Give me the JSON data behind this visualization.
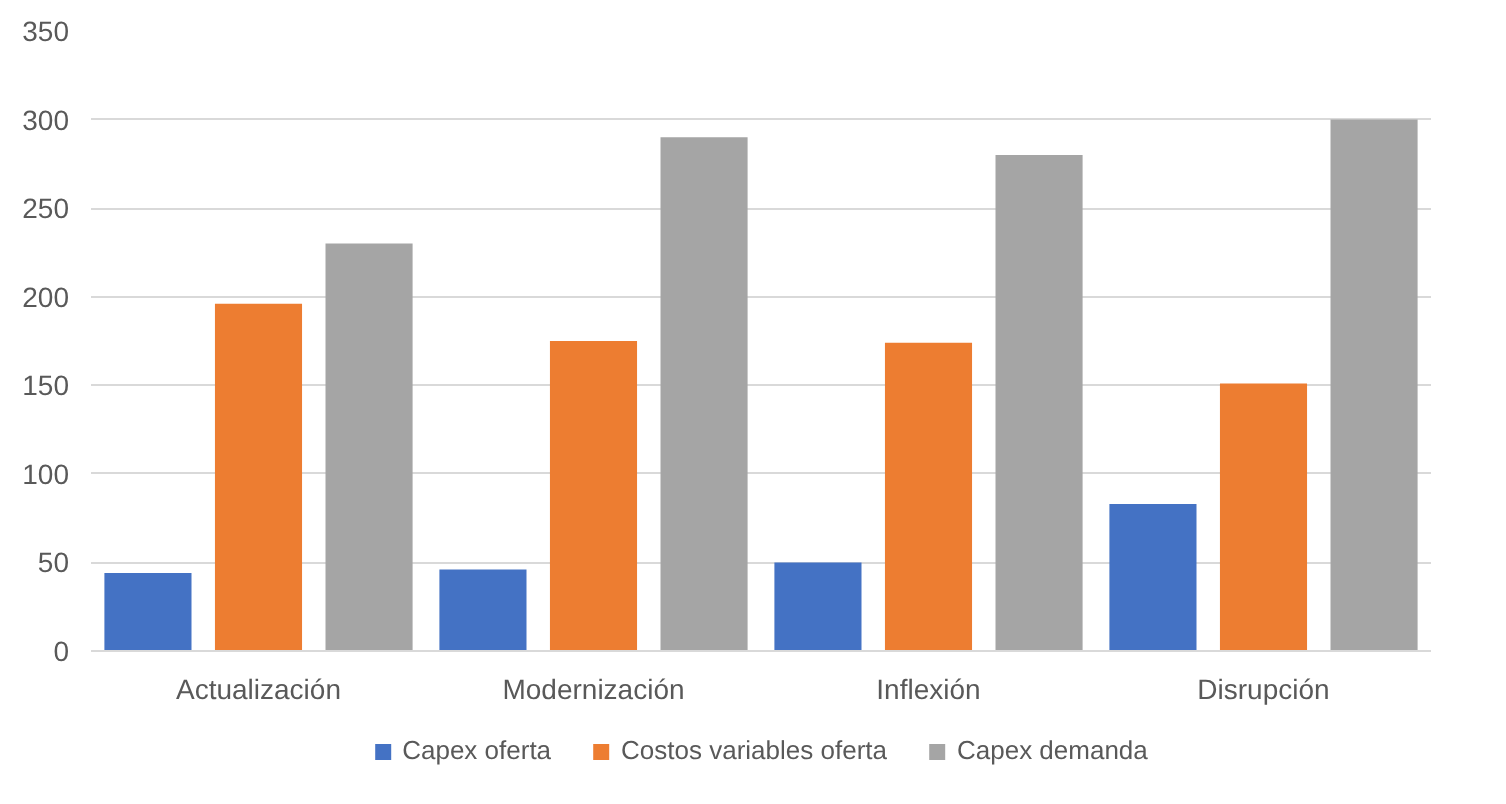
{
  "chart_data": {
    "type": "bar",
    "categories": [
      "Actualización",
      "Modernización",
      "Inflexión",
      "Disrupción"
    ],
    "series": [
      {
        "name": "Capex oferta",
        "color": "#4472c4",
        "values": [
          44,
          46,
          50,
          83
        ]
      },
      {
        "name": "Costos variables oferta",
        "color": "#ed7d31",
        "values": [
          196,
          175,
          174,
          151
        ]
      },
      {
        "name": "Capex demanda",
        "color": "#a5a5a5",
        "values": [
          230,
          290,
          280,
          300
        ]
      }
    ],
    "ylim": [
      0,
      350
    ],
    "yticks": [
      0,
      50,
      100,
      150,
      200,
      250,
      300,
      350
    ],
    "grid": "y",
    "legend": "bottom"
  }
}
